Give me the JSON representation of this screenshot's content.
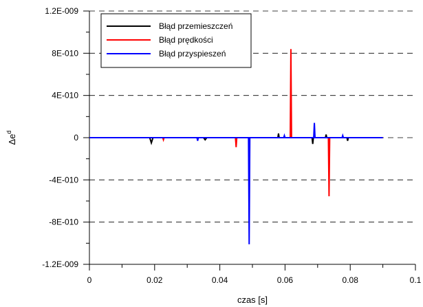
{
  "chart_data": {
    "type": "line",
    "xlabel": "czas [s]",
    "ylabel_base": "Δe",
    "ylabel_sup": "d",
    "xlim": [
      0,
      0.1
    ],
    "ylim": [
      -1.2e-09,
      1.2e-09
    ],
    "x_ticks": [
      0,
      0.02,
      0.04,
      0.06,
      0.08,
      0.1
    ],
    "x_tick_labels": [
      "0",
      "0.02",
      "0.04",
      "0.06",
      "0.08",
      "0.1"
    ],
    "y_ticks": [
      1.2e-09,
      8e-10,
      4e-10,
      0,
      -4e-10,
      -8e-10,
      -1.2e-09
    ],
    "y_tick_labels": [
      "1.2E-009",
      "8E-010",
      "4E-010",
      "0",
      "-4E-010",
      "-8E-010",
      "-1.2E-009"
    ],
    "grid": "dashed horizontal at major y ticks",
    "legend_position": "top-left",
    "series": [
      {
        "name": "Błąd przemieszczeń",
        "color": "#000000",
        "x": [
          0,
          0.0185,
          0.019,
          0.0195,
          0.035,
          0.0355,
          0.036,
          0.0578,
          0.058,
          0.0582,
          0.0683,
          0.0685,
          0.0687,
          0.0724,
          0.0726,
          0.0728,
          0.079,
          0.0792,
          0.0794,
          0.09
        ],
        "y": [
          0,
          0,
          -5e-11,
          0,
          0,
          -2e-11,
          0,
          0,
          4e-11,
          0,
          0,
          -6e-11,
          0,
          0,
          3e-11,
          0,
          0,
          -3e-11,
          0,
          0
        ]
      },
      {
        "name": "Błąd prędkości",
        "color": "#ff0000",
        "x": [
          0,
          0.0225,
          0.0227,
          0.0229,
          0.0448,
          0.045,
          0.0452,
          0.0616,
          0.0618,
          0.062,
          0.0733,
          0.0735,
          0.0737,
          0.09
        ],
        "y": [
          0,
          0,
          -2e-11,
          0,
          0,
          -9e-11,
          0,
          0,
          8.4e-10,
          0,
          0,
          -5.55e-10,
          0,
          0
        ]
      },
      {
        "name": "Błąd przyspieszeń",
        "color": "#0000ff",
        "x": [
          0,
          0.033,
          0.0332,
          0.0334,
          0.0488,
          0.049,
          0.0492,
          0.0596,
          0.0598,
          0.06,
          0.0688,
          0.069,
          0.0692,
          0.0775,
          0.0777,
          0.0779,
          0.09
        ],
        "y": [
          0,
          0,
          -3e-11,
          0,
          0,
          -1.01e-09,
          0,
          0,
          2e-11,
          0,
          0,
          1.4e-10,
          0,
          0,
          2e-11,
          0,
          0
        ]
      }
    ]
  }
}
